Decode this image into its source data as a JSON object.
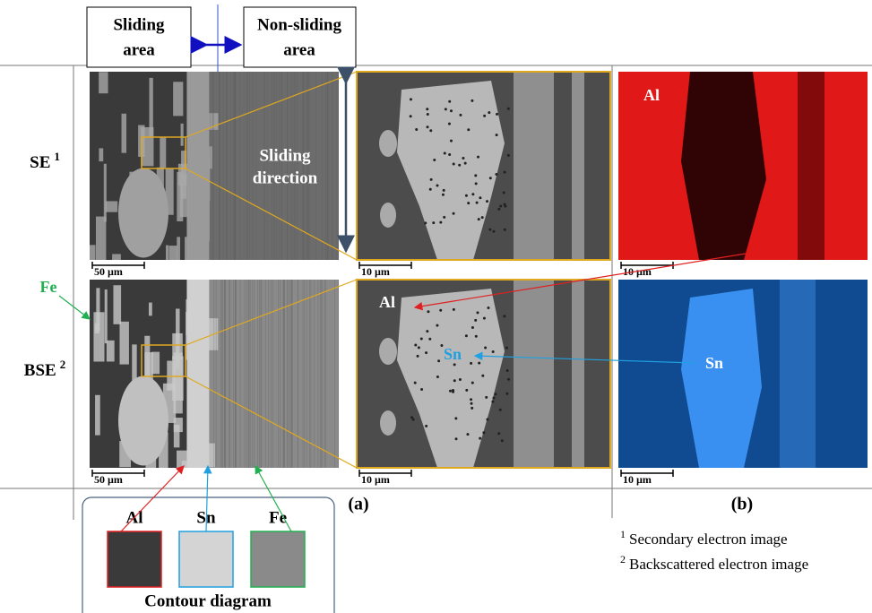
{
  "header": {
    "sliding_area": [
      "Sliding",
      "area"
    ],
    "non_sliding_area": [
      "Non-sliding",
      "area"
    ]
  },
  "rows": [
    {
      "label": "SE",
      "mark": "1"
    },
    {
      "label": "BSE",
      "mark": "2"
    }
  ],
  "annotations": {
    "fe": "Fe",
    "sliding_direction": [
      "Sliding",
      "direction"
    ],
    "al_map": "Al",
    "al_zoom": "Al",
    "sn_zoom": "Sn",
    "sn_map": "Sn"
  },
  "scale_bars": [
    "50 µm",
    "10 µm",
    "10 µm",
    "50 µm",
    "10 µm",
    "10 µm"
  ],
  "panel_labels": [
    "(a)",
    "(b)"
  ],
  "contour": {
    "labels": [
      "Al",
      "Sn",
      "Fe"
    ],
    "title": "Contour diagram"
  },
  "footnotes": [
    {
      "mark": "1",
      "text": "Secondary electron image"
    },
    {
      "mark": "2",
      "text": "Backscattered electron image"
    }
  ]
}
